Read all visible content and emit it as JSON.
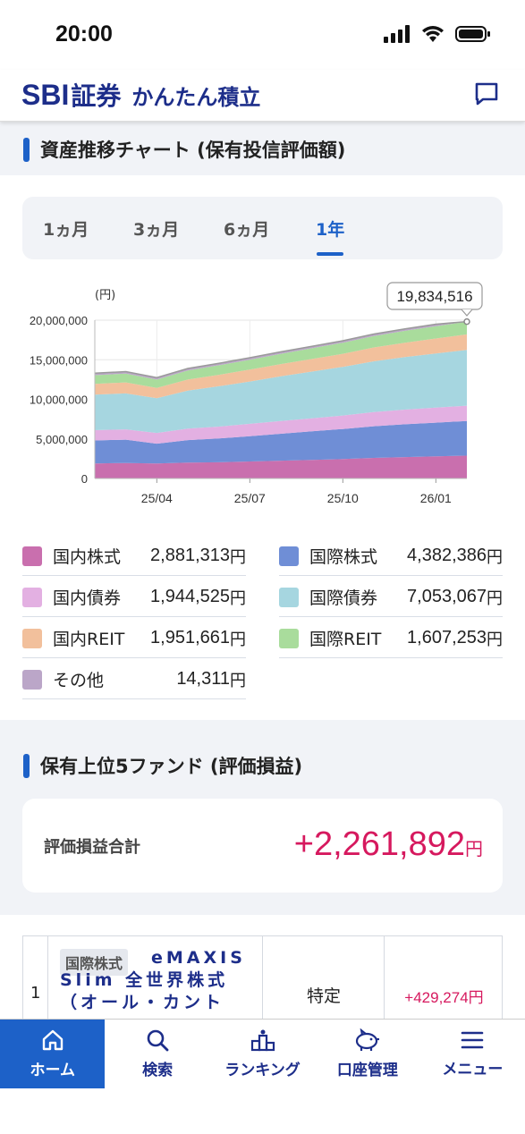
{
  "status_bar": {
    "time": "20:00"
  },
  "header": {
    "logo_sbi": "SBI",
    "logo_shoken": "証券",
    "product_name": "かんたん積立",
    "chat_icon": "chat-bubble-icon"
  },
  "asset_section": {
    "title": "資産推移チャート (保有投信評価額)",
    "tabs": [
      {
        "label": "1ヵ月",
        "active": false
      },
      {
        "label": "3ヵ月",
        "active": false
      },
      {
        "label": "6ヵ月",
        "active": false
      },
      {
        "label": "1年",
        "active": true
      }
    ]
  },
  "chart_data": {
    "type": "area",
    "stacked": true,
    "unit_label": "(円)",
    "callout": "19,834,516",
    "y_ticks": [
      "20,000,000",
      "15,000,000",
      "10,000,000",
      "5,000,000",
      "0"
    ],
    "ylim": [
      0,
      20000000
    ],
    "x_ticks": [
      "25/04",
      "25/07",
      "25/10",
      "26/01"
    ],
    "x": [
      "25/02",
      "25/03",
      "25/04",
      "25/05",
      "25/06",
      "25/07",
      "25/08",
      "25/09",
      "25/10",
      "25/11",
      "25/12",
      "26/01",
      "26/02"
    ],
    "series": [
      {
        "name": "国内株式",
        "color": "#c96fae",
        "values": [
          1900000,
          1950000,
          1900000,
          2000000,
          2050000,
          2150000,
          2250000,
          2350000,
          2450000,
          2600000,
          2700000,
          2800000,
          2880000
        ]
      },
      {
        "name": "国際株式",
        "color": "#6f8ed6",
        "values": [
          2900000,
          2950000,
          2500000,
          2850000,
          3000000,
          3200000,
          3400000,
          3600000,
          3800000,
          4000000,
          4150000,
          4250000,
          4380000
        ]
      },
      {
        "name": "国内債券",
        "color": "#e3b0e2",
        "values": [
          1300000,
          1300000,
          1350000,
          1450000,
          1500000,
          1550000,
          1600000,
          1650000,
          1700000,
          1800000,
          1850000,
          1900000,
          1940000
        ]
      },
      {
        "name": "国際債券",
        "color": "#a6d6e0",
        "values": [
          4500000,
          4550000,
          4400000,
          4800000,
          5100000,
          5350000,
          5650000,
          5900000,
          6150000,
          6400000,
          6650000,
          6850000,
          7050000
        ]
      },
      {
        "name": "国内REIT",
        "color": "#f2c09c",
        "values": [
          1350000,
          1380000,
          1300000,
          1400000,
          1450000,
          1500000,
          1550000,
          1600000,
          1650000,
          1750000,
          1800000,
          1880000,
          1950000
        ]
      },
      {
        "name": "国際REIT",
        "color": "#a9dc9c",
        "values": [
          1100000,
          1120000,
          1050000,
          1150000,
          1200000,
          1250000,
          1300000,
          1350000,
          1400000,
          1450000,
          1500000,
          1560000,
          1600000
        ]
      },
      {
        "name": "その他",
        "color": "#bba6c8",
        "values": [
          250000,
          250000,
          250000,
          250000,
          250000,
          250000,
          250000,
          250000,
          250000,
          250000,
          250000,
          250000,
          14311
        ]
      }
    ]
  },
  "legend": [
    {
      "label": "国内株式",
      "value": "2,881,313",
      "unit": "円",
      "color": "#c96fae"
    },
    {
      "label": "国際株式",
      "value": "4,382,386",
      "unit": "円",
      "color": "#6f8ed6"
    },
    {
      "label": "国内債券",
      "value": "1,944,525",
      "unit": "円",
      "color": "#e3b0e2"
    },
    {
      "label": "国際債券",
      "value": "7,053,067",
      "unit": "円",
      "color": "#a6d6e0"
    },
    {
      "label": "国内REIT",
      "value": "1,951,661",
      "unit": "円",
      "color": "#f2c09c"
    },
    {
      "label": "国際REIT",
      "value": "1,607,253",
      "unit": "円",
      "color": "#a9dc9c"
    },
    {
      "label": "その他",
      "value": "14,311",
      "unit": "円",
      "color": "#bba6c8"
    }
  ],
  "top_funds": {
    "title": "保有上位5ファンド (評価損益)",
    "total_label": "評価損益合計",
    "total_value": "+2,261,892",
    "total_unit": "円",
    "rows": [
      {
        "rank": "1",
        "category": "国際株式",
        "name": "eMAXIS Slim 全世界株式（オール・カント",
        "account": "特定",
        "pl": "+429,274円"
      }
    ]
  },
  "bottom_nav": [
    {
      "label": "ホーム",
      "icon": "home-icon",
      "active": true
    },
    {
      "label": "検索",
      "icon": "search-icon",
      "active": false
    },
    {
      "label": "ランキング",
      "icon": "ranking-icon",
      "active": false
    },
    {
      "label": "口座管理",
      "icon": "piggy-bank-icon",
      "active": false
    },
    {
      "label": "メニュー",
      "icon": "menu-icon",
      "active": false
    }
  ]
}
